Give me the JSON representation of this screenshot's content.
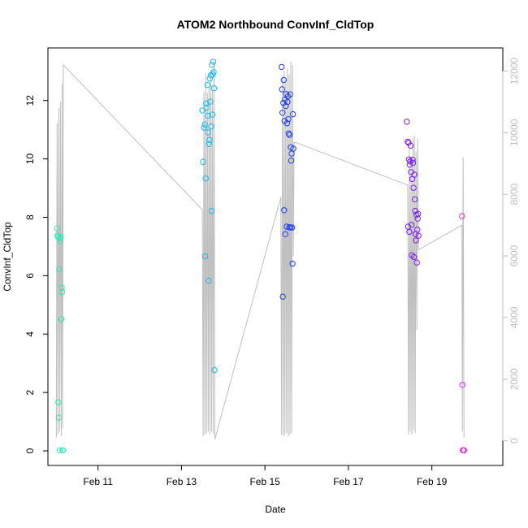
{
  "chart_data": {
    "type": "scatter",
    "title": "ATOM2 Northbound ConvInf_CldTop",
    "xlabel": "Date",
    "ylabel": "ConvInf_CldTop",
    "x_unit": "days (February)",
    "xlim": [
      9.8,
      20.7
    ],
    "ylim": [
      -0.5,
      13.8
    ],
    "y2lim": [
      -800,
      12750
    ],
    "x_ticks": [
      {
        "value": 11,
        "label": "Feb 11"
      },
      {
        "value": 13,
        "label": "Feb 13"
      },
      {
        "value": 15,
        "label": "Feb 15"
      },
      {
        "value": 17,
        "label": "Feb 17"
      },
      {
        "value": 19,
        "label": "Feb 19"
      }
    ],
    "y_ticks": [
      0,
      2,
      4,
      6,
      8,
      10,
      12
    ],
    "y2_ticks": [
      0,
      2000,
      4000,
      6000,
      8000,
      10000,
      12000
    ],
    "grid": false,
    "legend": "none",
    "series": [
      {
        "color": "#2ee8b6",
        "points": [
          [
            10.02,
            7.62
          ],
          [
            10.03,
            7.38
          ],
          [
            10.04,
            7.33
          ],
          [
            10.05,
            1.66
          ],
          [
            10.06,
            1.14
          ],
          [
            10.07,
            6.22
          ],
          [
            10.08,
            0.02
          ],
          [
            10.09,
            7.27
          ],
          [
            10.1,
            7.18
          ],
          [
            10.11,
            7.33
          ],
          [
            10.12,
            4.51
          ],
          [
            10.13,
            5.59
          ],
          [
            10.14,
            5.44
          ],
          [
            10.15,
            0.02
          ],
          [
            10.16,
            0.02
          ]
        ]
      },
      {
        "color": "#19b8ea",
        "points": [
          [
            13.5,
            11.66
          ],
          [
            13.52,
            9.9
          ],
          [
            13.54,
            11.07
          ],
          [
            13.56,
            11.18
          ],
          [
            13.57,
            6.66
          ],
          [
            13.58,
            9.33
          ],
          [
            13.59,
            11.9
          ],
          [
            13.6,
            11.76
          ],
          [
            13.62,
            12.53
          ],
          [
            13.63,
            11.48
          ],
          [
            13.64,
            10.91
          ],
          [
            13.65,
            5.83
          ],
          [
            13.66,
            10.51
          ],
          [
            13.67,
            10.65
          ],
          [
            13.68,
            12.75
          ],
          [
            13.69,
            11.96
          ],
          [
            13.7,
            12.86
          ],
          [
            13.71,
            11.11
          ],
          [
            13.72,
            8.22
          ],
          [
            13.73,
            13.22
          ],
          [
            13.74,
            11.52
          ],
          [
            13.75,
            12.89
          ],
          [
            13.76,
            13.33
          ],
          [
            13.77,
            12.97
          ],
          [
            13.78,
            12.42
          ],
          [
            13.79,
            2.77
          ]
        ]
      },
      {
        "color": "#1f3ee6",
        "points": [
          [
            15.4,
            13.15
          ],
          [
            15.41,
            12.38
          ],
          [
            15.42,
            11.58
          ],
          [
            15.43,
            5.28
          ],
          [
            15.44,
            11.92
          ],
          [
            15.45,
            12.7
          ],
          [
            15.46,
            8.24
          ],
          [
            15.47,
            11.3
          ],
          [
            15.48,
            12.03
          ],
          [
            15.49,
            7.42
          ],
          [
            15.5,
            11.81
          ],
          [
            15.51,
            12.22
          ],
          [
            15.52,
            7.68
          ],
          [
            15.53,
            11.22
          ],
          [
            15.54,
            11.95
          ],
          [
            15.55,
            12.14
          ],
          [
            15.56,
            11.36
          ],
          [
            15.57,
            10.87
          ],
          [
            15.58,
            7.66
          ],
          [
            15.59,
            10.82
          ],
          [
            15.6,
            12.21
          ],
          [
            15.61,
            7.65
          ],
          [
            15.62,
            10.4
          ],
          [
            15.63,
            9.94
          ],
          [
            15.64,
            10.18
          ],
          [
            15.65,
            7.65
          ],
          [
            15.66,
            6.41
          ],
          [
            15.67,
            11.53
          ],
          [
            15.68,
            10.35
          ]
        ]
      },
      {
        "color": "#7b1fe8",
        "points": [
          [
            18.4,
            11.27
          ],
          [
            18.42,
            10.59
          ],
          [
            18.43,
            7.68
          ],
          [
            18.44,
            10.55
          ],
          [
            18.45,
            9.98
          ],
          [
            18.46,
            7.5
          ],
          [
            18.47,
            9.8
          ],
          [
            18.48,
            9.91
          ],
          [
            18.49,
            10.45
          ],
          [
            18.5,
            9.55
          ],
          [
            18.51,
            7.74
          ],
          [
            18.52,
            6.7
          ],
          [
            18.53,
            9.31
          ],
          [
            18.54,
            9.97
          ],
          [
            18.55,
            9.86
          ],
          [
            18.56,
            9.01
          ],
          [
            18.57,
            6.64
          ],
          [
            18.58,
            9.46
          ],
          [
            18.59,
            8.61
          ],
          [
            18.6,
            8.22
          ],
          [
            18.61,
            7.42
          ],
          [
            18.62,
            7.21
          ],
          [
            18.63,
            8.09
          ],
          [
            18.64,
            6.45
          ],
          [
            18.65,
            7.58
          ],
          [
            18.66,
            7.95
          ],
          [
            18.67,
            8.12
          ],
          [
            18.68,
            7.37
          ]
        ]
      },
      {
        "color": "#e52ee6",
        "points": [
          [
            19.72,
            8.04
          ],
          [
            19.73,
            2.26
          ],
          [
            19.74,
            0.02
          ],
          [
            19.75,
            0.02
          ],
          [
            19.76,
            0.02
          ],
          [
            19.77,
            0.02
          ]
        ]
      }
    ],
    "line_series": {
      "axis": "right",
      "color": "#bebebe",
      "points": [
        [
          10.0,
          100
        ],
        [
          10.02,
          10300
        ],
        [
          10.04,
          200
        ],
        [
          10.06,
          10800
        ],
        [
          10.08,
          300
        ],
        [
          10.1,
          11000
        ],
        [
          10.12,
          150
        ],
        [
          10.14,
          11600
        ],
        [
          10.15,
          400
        ],
        [
          10.17,
          12200
        ],
        [
          13.5,
          7500
        ],
        [
          13.52,
          150
        ],
        [
          13.54,
          11300
        ],
        [
          13.56,
          200
        ],
        [
          13.58,
          11900
        ],
        [
          13.6,
          250
        ],
        [
          13.62,
          11300
        ],
        [
          13.64,
          300
        ],
        [
          13.66,
          11500
        ],
        [
          13.68,
          200
        ],
        [
          13.7,
          12000
        ],
        [
          13.72,
          300
        ],
        [
          13.74,
          11400
        ],
        [
          13.76,
          250
        ],
        [
          13.78,
          12300
        ],
        [
          13.8,
          50
        ],
        [
          15.38,
          7900
        ],
        [
          15.4,
          200
        ],
        [
          15.42,
          11800
        ],
        [
          15.44,
          150
        ],
        [
          15.46,
          12000
        ],
        [
          15.48,
          200
        ],
        [
          15.5,
          11700
        ],
        [
          15.52,
          250
        ],
        [
          15.54,
          12100
        ],
        [
          15.56,
          150
        ],
        [
          15.58,
          11900
        ],
        [
          15.6,
          200
        ],
        [
          15.62,
          12300
        ],
        [
          15.64,
          250
        ],
        [
          15.66,
          12200
        ],
        [
          15.68,
          6000
        ],
        [
          15.7,
          9700
        ],
        [
          18.42,
          8300
        ],
        [
          18.44,
          200
        ],
        [
          18.46,
          9500
        ],
        [
          18.48,
          300
        ],
        [
          18.5,
          9200
        ],
        [
          18.52,
          200
        ],
        [
          18.54,
          9800
        ],
        [
          18.56,
          350
        ],
        [
          18.58,
          9900
        ],
        [
          18.6,
          250
        ],
        [
          18.62,
          9400
        ],
        [
          18.64,
          3600
        ],
        [
          18.66,
          9800
        ],
        [
          18.68,
          6200
        ],
        [
          19.72,
          7000
        ],
        [
          19.73,
          300
        ],
        [
          19.75,
          9200
        ],
        [
          19.77,
          100
        ]
      ]
    }
  }
}
